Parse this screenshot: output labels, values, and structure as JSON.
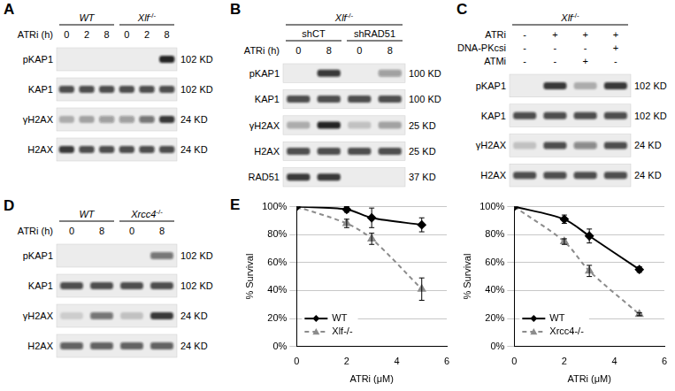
{
  "panels": [
    {
      "label": "A",
      "headers": [
        [
          {
            "text": "WT",
            "lanes": [
              1,
              3
            ]
          },
          {
            "name": "Xlf",
            "superscript": "-/-",
            "lanes": [
              4,
              6
            ]
          }
        ]
      ],
      "conditions": [
        {
          "label": "ATRi (h)",
          "values": [
            0,
            2,
            8,
            0,
            2,
            8
          ]
        }
      ],
      "blots": [
        {
          "protein": "pKAP1",
          "size": "102 KD",
          "intensity": [
            0,
            0,
            0,
            0,
            0,
            1
          ]
        },
        {
          "protein": "KAP1",
          "size": "102 KD",
          "intensity": [
            0.8,
            0.8,
            0.8,
            0.8,
            0.8,
            0.8
          ]
        },
        {
          "protein": "γH2AX",
          "size": "24 KD",
          "intensity": [
            0.3,
            0.35,
            0.4,
            0.4,
            0.6,
            0.9
          ]
        },
        {
          "protein": "H2AX",
          "size": "24 KD",
          "intensity": [
            0.9,
            0.8,
            0.8,
            0.8,
            0.8,
            0.8
          ]
        }
      ]
    },
    {
      "label": "B",
      "headers": [
        [
          {
            "name": "Xlf",
            "superscript": "-/-",
            "lanes": [
              1,
              4
            ]
          }
        ],
        [
          {
            "text": "shCT",
            "lanes": [
              1,
              2
            ]
          },
          {
            "text": "shRAD51",
            "lanes": [
              3,
              4
            ]
          }
        ]
      ],
      "conditions": [
        {
          "label": "ATRi (h)",
          "values": [
            0,
            8,
            0,
            8
          ]
        }
      ],
      "blots": [
        {
          "protein": "pKAP1",
          "size": "100 KD",
          "intensity": [
            0,
            0.9,
            0,
            0.4
          ]
        },
        {
          "protein": "KAP1",
          "size": "100 KD",
          "intensity": [
            0.8,
            0.8,
            0.8,
            0.8
          ]
        },
        {
          "protein": "γH2AX",
          "size": "25 KD",
          "intensity": [
            0.3,
            1,
            0.2,
            0.35
          ]
        },
        {
          "protein": "H2AX",
          "size": "25 KD",
          "intensity": [
            0.8,
            0.8,
            0.8,
            0.8
          ]
        },
        {
          "protein": "RAD51",
          "size": "37 KD",
          "intensity": [
            0.9,
            0.9,
            0,
            0
          ]
        }
      ]
    },
    {
      "label": "C",
      "headers": [
        [
          {
            "name": "Xlf",
            "superscript": "-/-",
            "lanes": [
              1,
              4
            ]
          }
        ]
      ],
      "conditions": [
        {
          "label": "ATRi",
          "values": [
            "-",
            "+",
            "+",
            "+"
          ]
        },
        {
          "label": "DNA-PKcsi",
          "values": [
            "-",
            "-",
            "-",
            "+"
          ]
        },
        {
          "label": "ATMi",
          "values": [
            "-",
            "-",
            "+",
            "-"
          ]
        }
      ],
      "blots": [
        {
          "protein": "pKAP1",
          "size": "102 KD",
          "intensity": [
            0,
            0.9,
            0.3,
            0.9
          ]
        },
        {
          "protein": "KAP1",
          "size": "102 KD",
          "intensity": [
            0.8,
            0.8,
            0.8,
            0.8
          ]
        },
        {
          "protein": "γH2AX",
          "size": "24 KD",
          "intensity": [
            0.2,
            0.8,
            0.5,
            0.8
          ]
        },
        {
          "protein": "H2AX",
          "size": "24 KD",
          "intensity": [
            0.8,
            0.8,
            0.8,
            0.8
          ]
        }
      ]
    },
    {
      "label": "D",
      "headers": [
        [
          {
            "text": "WT",
            "lanes": [
              1,
              2
            ]
          },
          {
            "name": "Xrcc4",
            "superscript": "-/-",
            "lanes": [
              3,
              4
            ]
          }
        ]
      ],
      "conditions": [
        {
          "label": "ATRi (h)",
          "values": [
            0,
            8,
            0,
            8
          ]
        }
      ],
      "blots": [
        {
          "protein": "pKAP1",
          "size": "102 KD",
          "intensity": [
            0,
            0,
            0,
            0.6
          ]
        },
        {
          "protein": "KAP1",
          "size": "102 KD",
          "intensity": [
            0.8,
            0.8,
            0.8,
            0.8
          ]
        },
        {
          "protein": "γH2AX",
          "size": "24 KD",
          "intensity": [
            0.15,
            0.6,
            0.2,
            0.9
          ]
        },
        {
          "protein": "H2AX",
          "size": "24 KD",
          "intensity": [
            0.7,
            0.7,
            0.7,
            0.7
          ]
        }
      ]
    }
  ],
  "chart_panel": {
    "label": "E"
  },
  "chart_data": [
    {
      "type": "line",
      "xlabel": "ATRi (μM)",
      "ylabel": "% Survival",
      "xlim": [
        0,
        6
      ],
      "xticks": [
        0,
        2,
        4,
        6
      ],
      "ylim": [
        0,
        100
      ],
      "yticks": [
        {
          "value": 0,
          "label": "0%"
        },
        {
          "value": 20,
          "label": "20%"
        },
        {
          "value": 40,
          "label": "40%"
        },
        {
          "value": 60,
          "label": "60%"
        },
        {
          "value": 80,
          "label": "80%"
        },
        {
          "value": 100,
          "label": "100%"
        }
      ],
      "grid": "y",
      "legend": "lower left",
      "series": [
        {
          "name": "WT",
          "color": "#000000",
          "marker": "diamond",
          "line_style": "solid",
          "x": [
            0,
            2,
            3,
            5
          ],
          "values": [
            100,
            98,
            92,
            87
          ],
          "errors": [
            0,
            2,
            7,
            5
          ]
        },
        {
          "name": "Xlf-/-",
          "color": "#8c8c8c",
          "marker": "triangle",
          "line_style": "dashed",
          "x": [
            0,
            2,
            3,
            5
          ],
          "values": [
            100,
            88,
            77,
            41
          ],
          "errors": [
            0,
            3,
            4,
            8
          ]
        }
      ]
    },
    {
      "type": "line",
      "xlabel": "ATRi (μM)",
      "ylabel": "% Survival",
      "xlim": [
        0,
        6
      ],
      "xticks": [
        0,
        2,
        4,
        6
      ],
      "ylim": [
        0,
        100
      ],
      "yticks": [
        {
          "value": 0,
          "label": "0%"
        },
        {
          "value": 20,
          "label": "20%"
        },
        {
          "value": 40,
          "label": "40%"
        },
        {
          "value": 60,
          "label": "60%"
        },
        {
          "value": 80,
          "label": "80%"
        },
        {
          "value": 100,
          "label": "100%"
        }
      ],
      "grid": "y",
      "legend": "lower left",
      "series": [
        {
          "name": "WT",
          "color": "#000000",
          "marker": "diamond",
          "line_style": "solid",
          "x": [
            0,
            2,
            3,
            5
          ],
          "values": [
            100,
            91,
            79,
            55
          ],
          "errors": [
            0,
            3,
            5,
            2
          ]
        },
        {
          "name": "Xrcc4-/-",
          "color": "#8c8c8c",
          "marker": "triangle",
          "line_style": "dashed",
          "x": [
            0,
            2,
            3,
            5
          ],
          "values": [
            100,
            75,
            54,
            23
          ],
          "errors": [
            0,
            2,
            4,
            1
          ]
        }
      ]
    }
  ]
}
